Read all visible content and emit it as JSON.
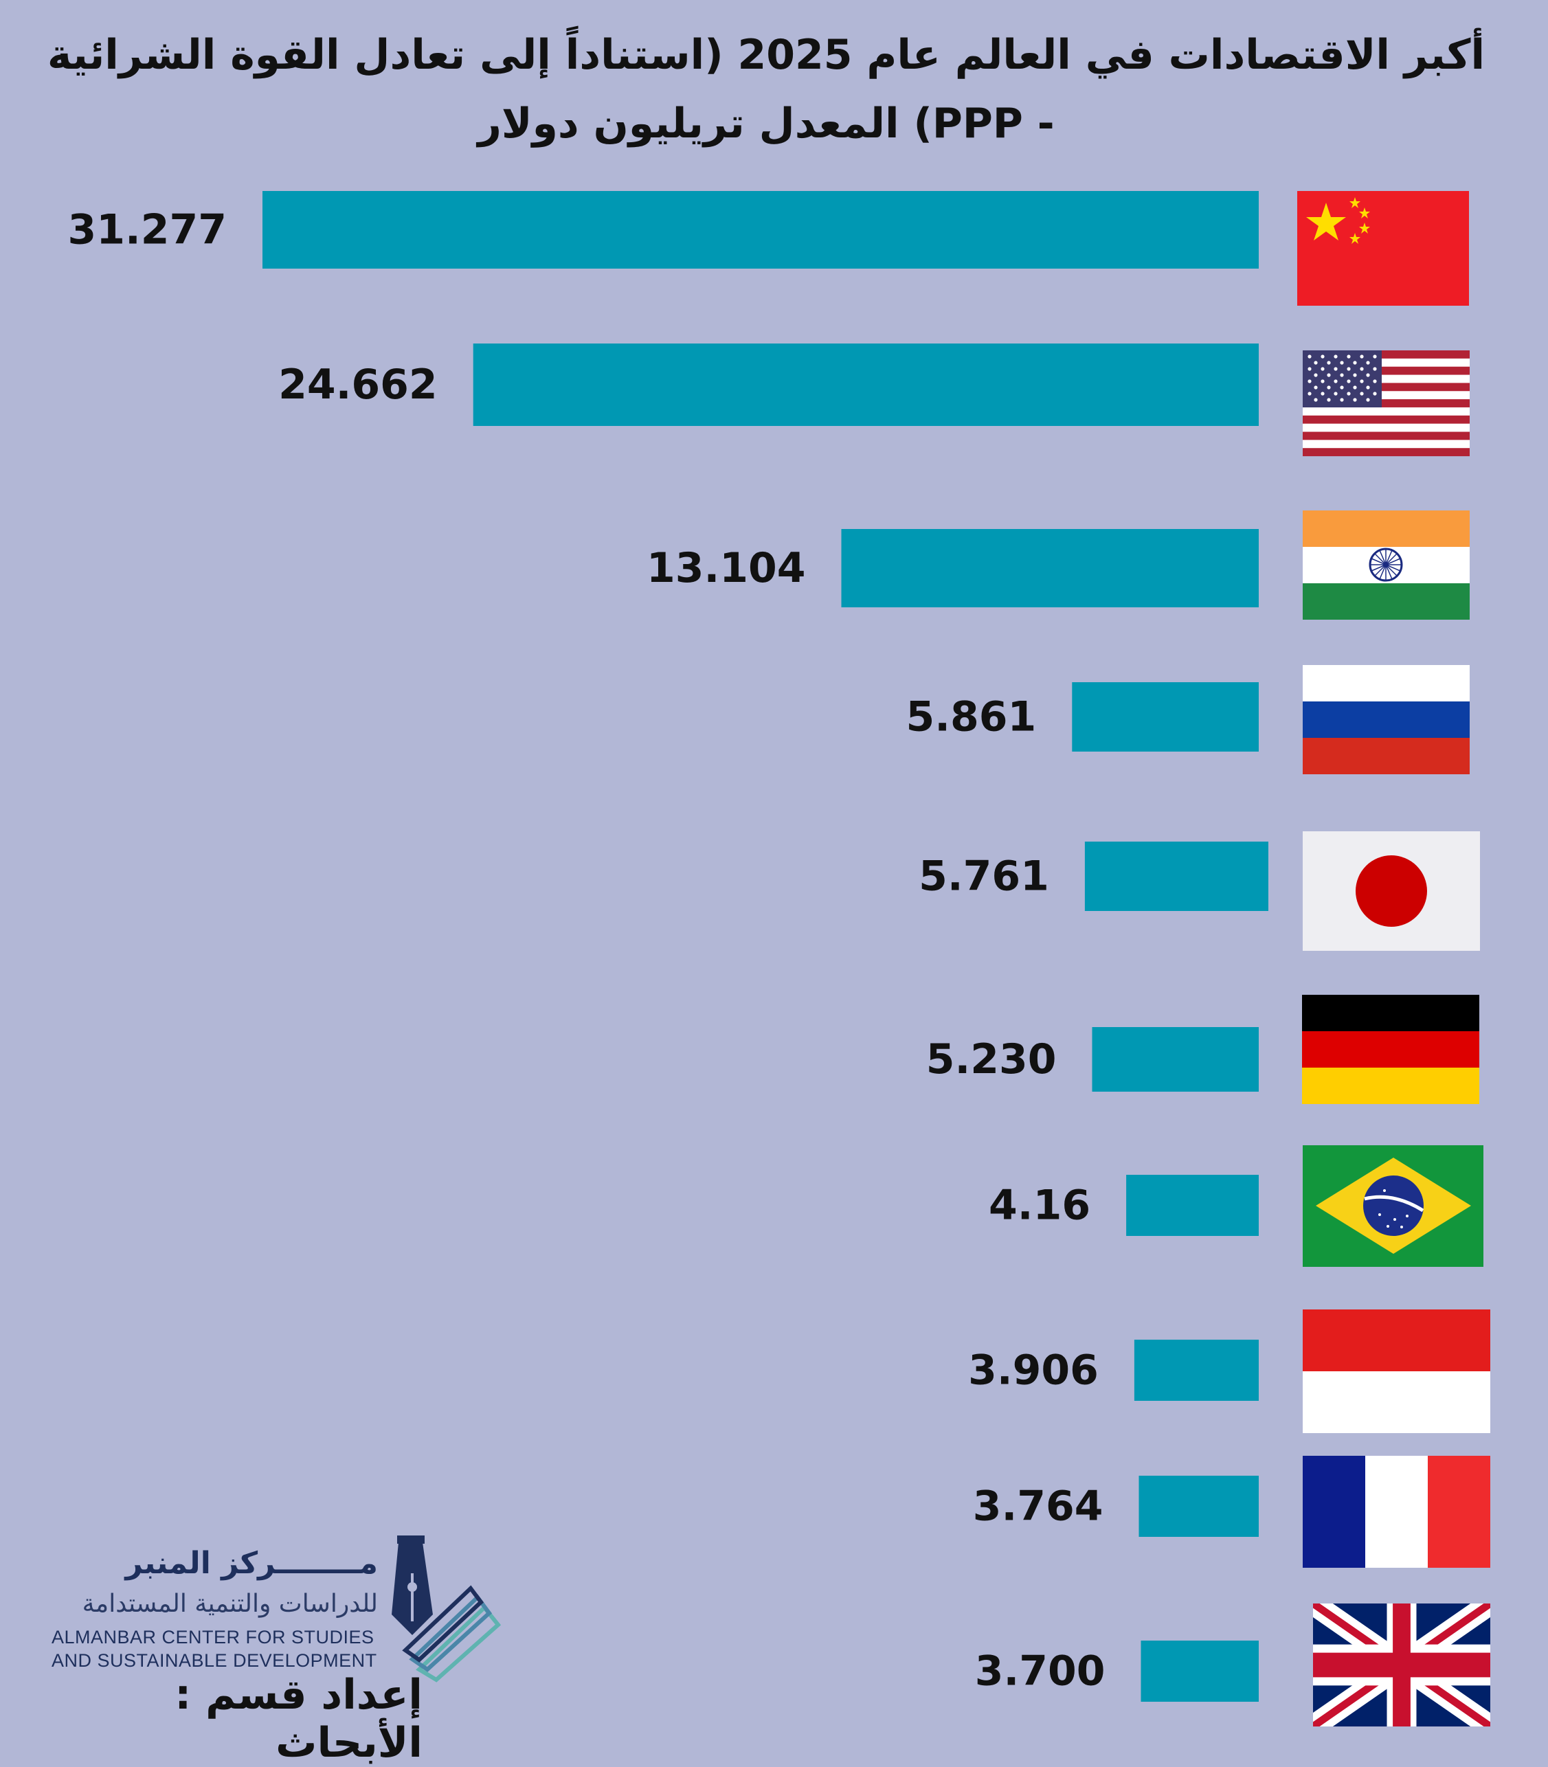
{
  "chart_data": {
    "type": "bar",
    "orientation": "horizontal",
    "title": "أكبر الاقتصادات في العالم  عام 2025 (استناداً إلى تعادل القوة الشرائية - PPP) المعدل تريليون دولار",
    "categories": [
      "china-flag",
      "usa-flag",
      "india-flag",
      "russia-flag",
      "japan-flag",
      "germany-flag",
      "brazil-flag",
      "indonesia-flag",
      "france-flag",
      "uk-flag"
    ],
    "value_labels": [
      "31.277",
      "24.662",
      "13.104",
      "5.861",
      "5.761",
      "5.230",
      "4.16",
      "3.906",
      "3.764",
      "3.700"
    ],
    "values": [
      31.277,
      24.662,
      13.104,
      5.861,
      5.761,
      5.23,
      4.16,
      3.906,
      3.764,
      3.7
    ],
    "bar_color": "#0098b3",
    "legend": "none",
    "grid": false
  },
  "logo": {
    "name_ar": "مــــــــركز المنبر",
    "subtitle_ar": "للدراسات والتنمية المستدامة",
    "name_en_line1": "ALMANBAR CENTER FOR STUDIES",
    "name_en_line2": "AND SUSTAINABLE DEVELOPMENT"
  },
  "credit": "إعداد قسم : الأبحاث",
  "colors": {
    "background": "#b2b7d6",
    "logo_navy": "#1e2f5c",
    "logo_teal": "#5fb3b0"
  }
}
